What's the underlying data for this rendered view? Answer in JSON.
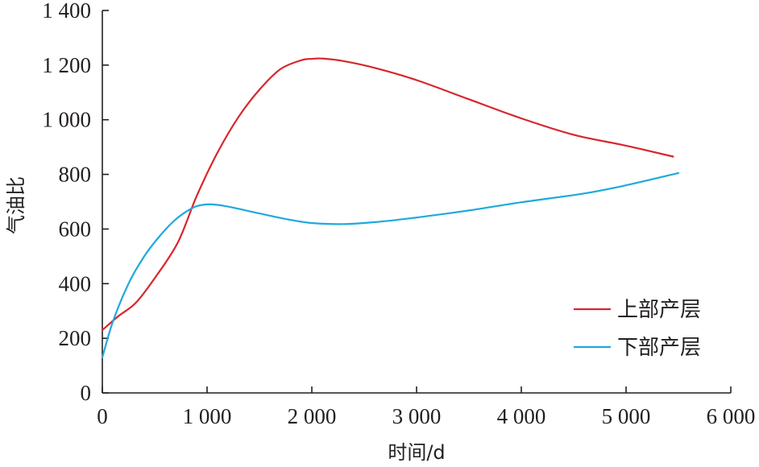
{
  "chart_data": {
    "type": "line",
    "xlabel": "时间/d",
    "ylabel": "气油比",
    "xlim": [
      0,
      6000
    ],
    "ylim": [
      0,
      1400
    ],
    "x_ticks": [
      0,
      1000,
      2000,
      3000,
      4000,
      5000,
      6000
    ],
    "x_tick_labels": [
      "0",
      "1 000",
      "2 000",
      "3 000",
      "4 000",
      "5 000",
      "6 000"
    ],
    "y_ticks": [
      0,
      200,
      400,
      600,
      800,
      1000,
      1200,
      1400
    ],
    "y_tick_labels": [
      "0",
      "200",
      "400",
      "600",
      "800",
      "1 000",
      "1 200",
      "1 400"
    ],
    "grid": false,
    "legend_position": "bottom-right",
    "series": [
      {
        "name": "上部产层",
        "color": "#d7262b",
        "x": [
          0,
          150,
          320,
          500,
          720,
          900,
          1100,
          1300,
          1500,
          1700,
          1900,
          2000,
          2100,
          2300,
          2600,
          3000,
          3500,
          4000,
          4500,
          5000,
          5450
        ],
        "y": [
          230,
          280,
          330,
          420,
          550,
          720,
          880,
          1010,
          1110,
          1185,
          1218,
          1223,
          1224,
          1215,
          1190,
          1145,
          1075,
          1005,
          945,
          905,
          865
        ]
      },
      {
        "name": "下部产层",
        "color": "#1fa9dd",
        "x": [
          0,
          100,
          250,
          400,
          550,
          700,
          850,
          950,
          1050,
          1200,
          1500,
          1800,
          2000,
          2300,
          2600,
          3000,
          3500,
          4000,
          4600,
          5000,
          5500
        ],
        "y": [
          130,
          260,
          400,
          500,
          575,
          635,
          675,
          688,
          690,
          682,
          657,
          633,
          622,
          618,
          625,
          642,
          668,
          698,
          730,
          760,
          805
        ]
      }
    ]
  }
}
